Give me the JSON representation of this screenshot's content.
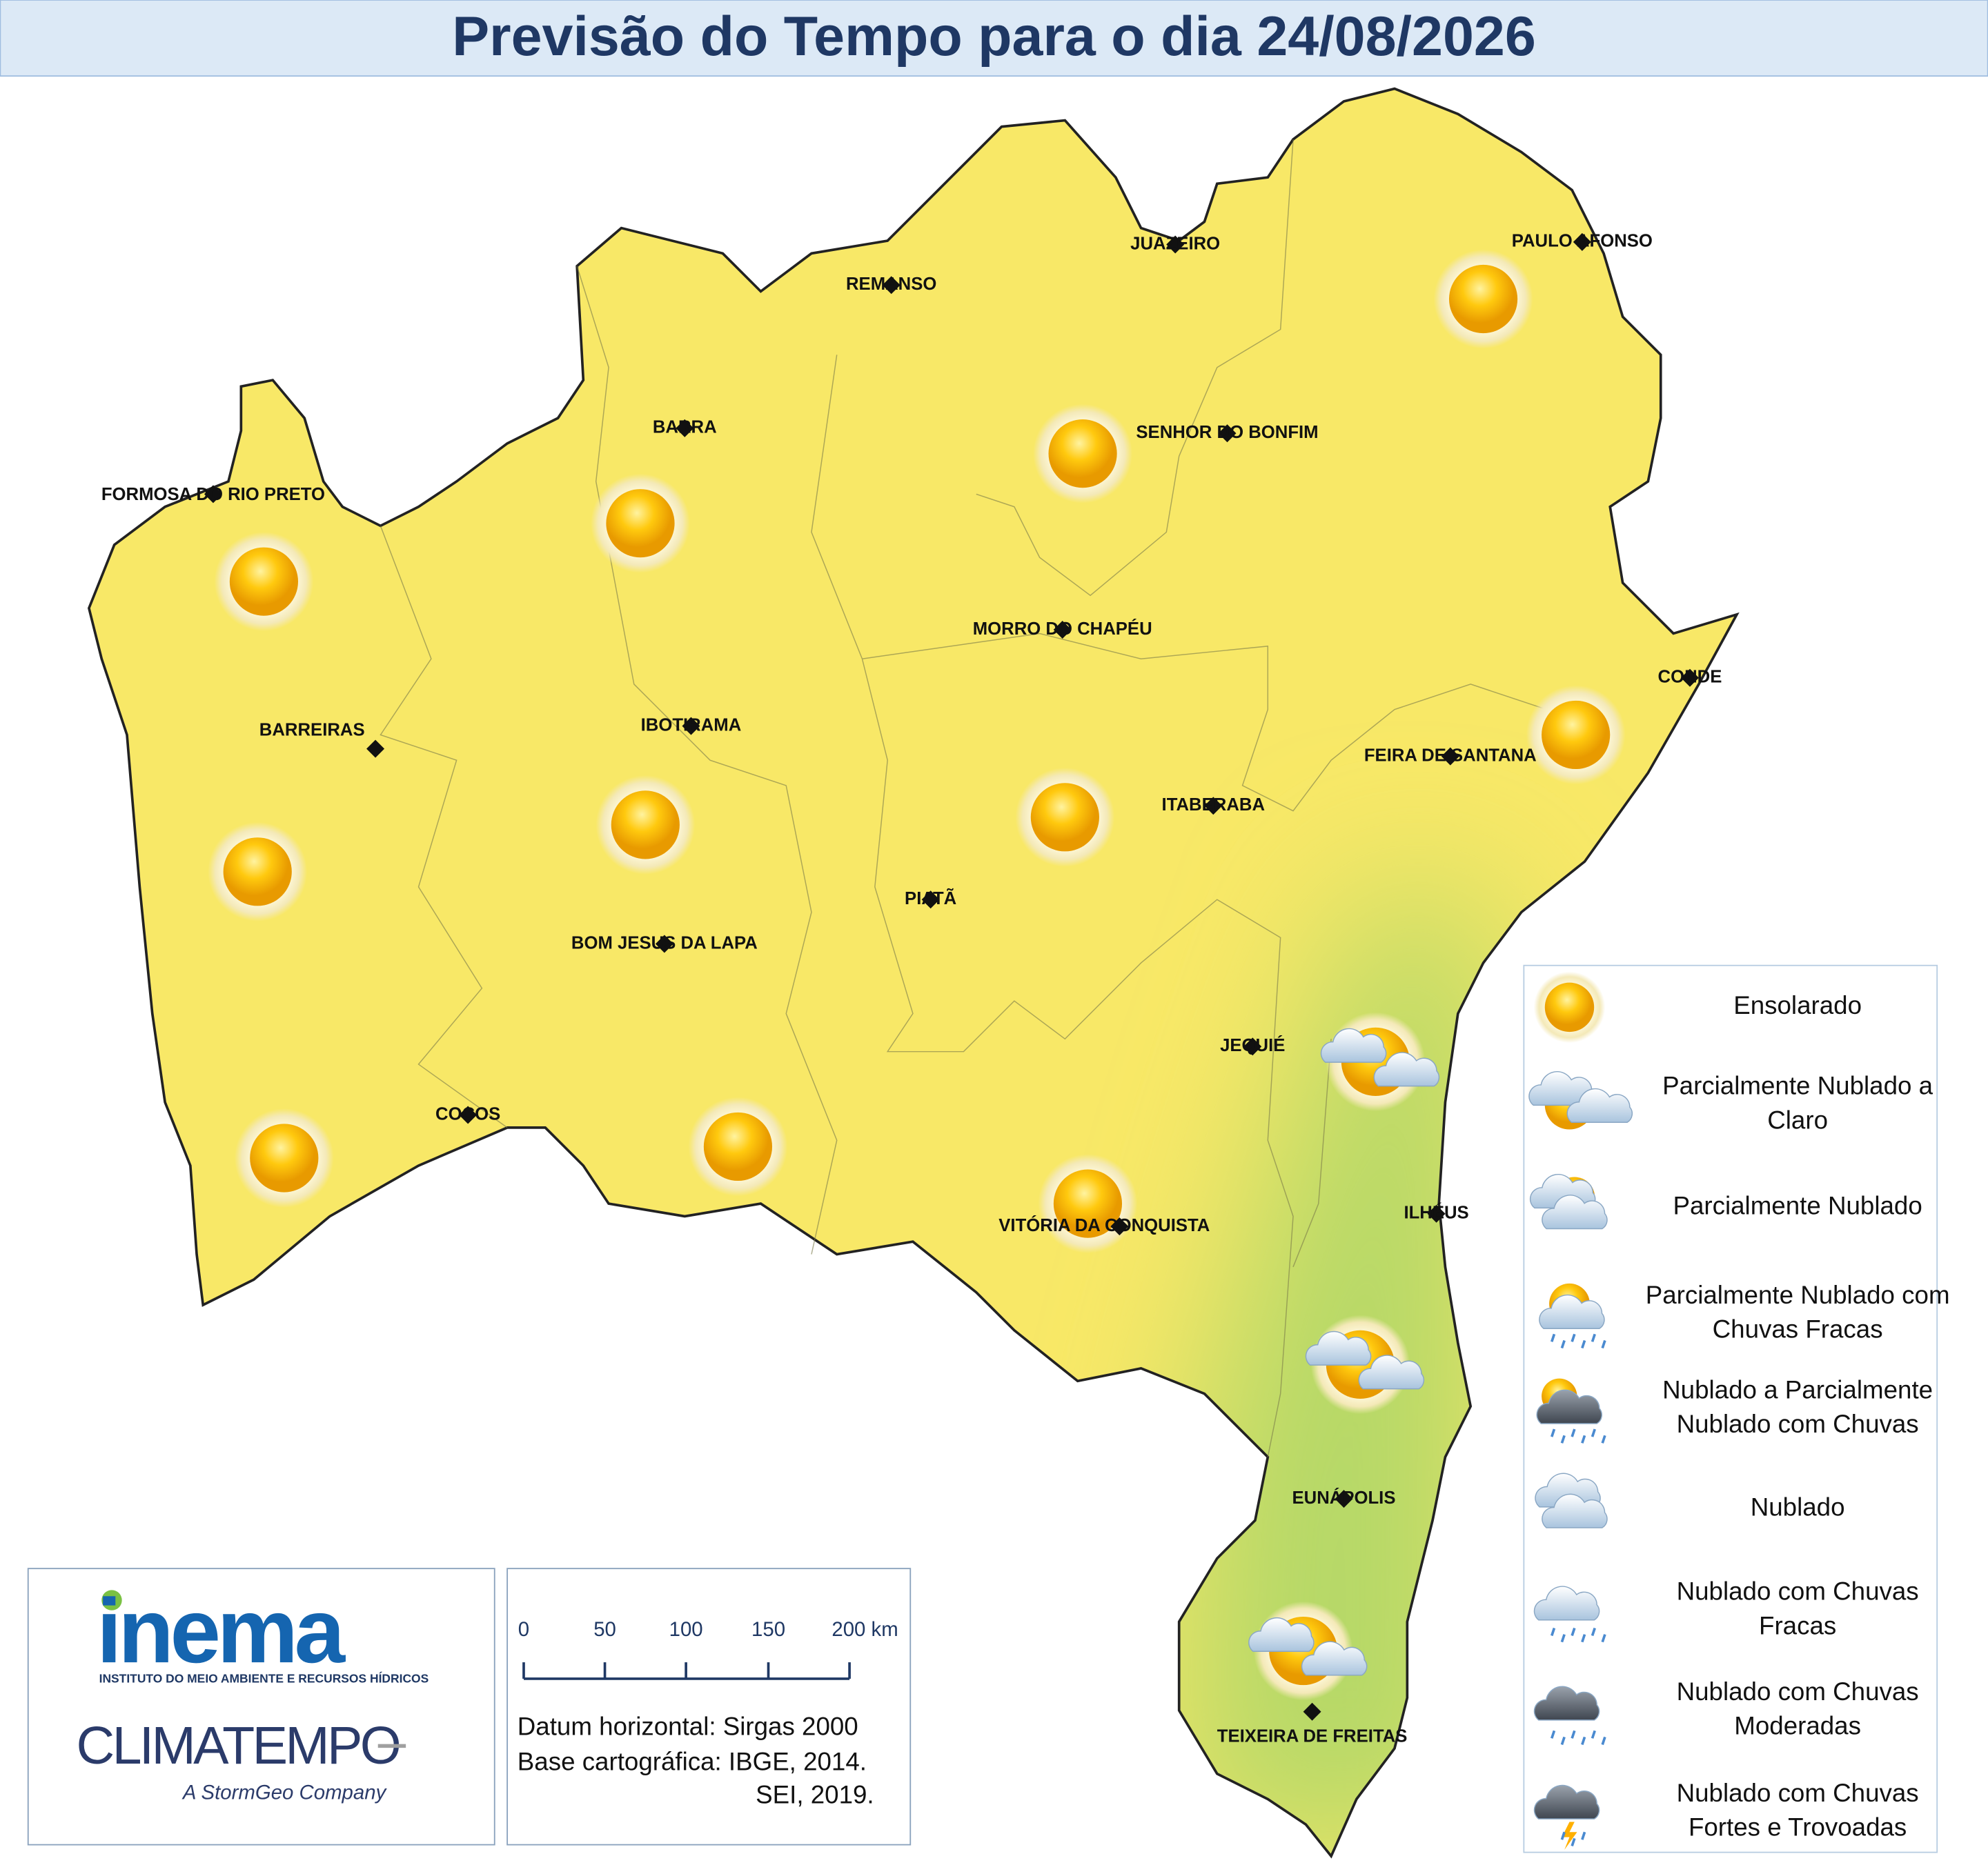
{
  "header": {
    "title": "Previsão do Tempo para o dia 24/08/2026"
  },
  "cities": [
    "FORMOSA DO RIO PRETO",
    "JUAZEIRO",
    "REMANSO",
    "PAULO AFONSO",
    "BARRA",
    "SENHOR DO BONFIM",
    "MORRO DO CHAPÉU",
    "CONDE",
    "BARREIRAS",
    "IBOTIRAMA",
    "FEIRA DE SANTANA",
    "ITABERABA",
    "PIATÃ",
    "BOM JESUS DA LAPA",
    "JEQUIÉ",
    "COCOS",
    "VITÓRIA DA CONQUISTA",
    "ILHÉUS",
    "EUNÁPOLIS",
    "TEIXEIRA DE FREITAS"
  ],
  "legend": [
    [
      "Ensolarado"
    ],
    [
      "Parcialmente Nublado a",
      "Claro"
    ],
    [
      "Parcialmente Nublado"
    ],
    [
      "Parcialmente Nublado com",
      "Chuvas Fracas"
    ],
    [
      "Nublado a Parcialmente",
      "Nublado com Chuvas"
    ],
    [
      "Nublado"
    ],
    [
      "Nublado com Chuvas",
      "Fracas"
    ],
    [
      "Nublado com Chuvas",
      "Moderadas"
    ],
    [
      "Nublado com Chuvas",
      "Fortes e Trovoadas"
    ]
  ],
  "scale_bar": {
    "ticks": [
      "0",
      "50",
      "100",
      "150",
      "200 km"
    ]
  },
  "notes": [
    "Datum horizontal: Sirgas 2000",
    "Base cartográfica: IBGE, 2014.",
    "SEI, 2019."
  ],
  "logos": {
    "inema": "inema",
    "inema_subtitle": "INSTITUTO DO MEIO AMBIENTE E RECURSOS HÍDRICOS",
    "climatempo": "CLIMATEMPO",
    "tagline": "A StormGeo Company"
  }
}
